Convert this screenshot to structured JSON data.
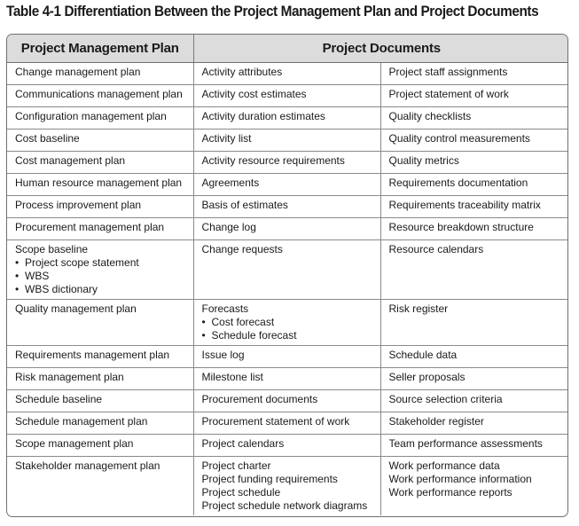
{
  "title": "Table 4-1 Differentiation Between the Project Management Plan and Project Documents",
  "headers": {
    "plan": "Project Management Plan",
    "documents": "Project Documents"
  },
  "rows": [
    {
      "plan": [
        "Change management plan"
      ],
      "doc1": [
        "Activity attributes"
      ],
      "doc2": [
        "Project staff assignments"
      ]
    },
    {
      "plan": [
        "Communications management plan"
      ],
      "doc1": [
        "Activity cost estimates"
      ],
      "doc2": [
        "Project statement of work"
      ]
    },
    {
      "plan": [
        "Configuration management plan"
      ],
      "doc1": [
        "Activity duration estimates"
      ],
      "doc2": [
        "Quality checklists"
      ]
    },
    {
      "plan": [
        "Cost baseline"
      ],
      "doc1": [
        "Activity list"
      ],
      "doc2": [
        "Quality control measurements"
      ]
    },
    {
      "plan": [
        "Cost management plan"
      ],
      "doc1": [
        "Activity resource requirements"
      ],
      "doc2": [
        "Quality metrics"
      ]
    },
    {
      "plan": [
        "Human resource management plan"
      ],
      "doc1": [
        "Agreements"
      ],
      "doc2": [
        "Requirements documentation"
      ]
    },
    {
      "plan": [
        "Process improvement plan"
      ],
      "doc1": [
        "Basis of estimates"
      ],
      "doc2": [
        "Requirements traceability matrix"
      ]
    },
    {
      "plan": [
        "Procurement management plan"
      ],
      "doc1": [
        "Change log"
      ],
      "doc2": [
        "Resource breakdown structure"
      ]
    },
    {
      "plan": [
        "Scope baseline"
      ],
      "plan_bullets": [
        "Project scope statement",
        "WBS",
        "WBS dictionary"
      ],
      "doc1": [
        "Change requests"
      ],
      "doc2": [
        "Resource calendars"
      ]
    },
    {
      "plan": [
        "Quality management plan"
      ],
      "doc1": [
        "Forecasts"
      ],
      "doc1_bullets": [
        "Cost forecast",
        "Schedule forecast"
      ],
      "doc2": [
        "Risk register"
      ]
    },
    {
      "plan": [
        "Requirements management plan"
      ],
      "doc1": [
        "Issue log"
      ],
      "doc2": [
        "Schedule data"
      ]
    },
    {
      "plan": [
        "Risk management plan"
      ],
      "doc1": [
        "Milestone list"
      ],
      "doc2": [
        "Seller proposals"
      ]
    },
    {
      "plan": [
        "Schedule baseline"
      ],
      "doc1": [
        "Procurement documents"
      ],
      "doc2": [
        "Source selection criteria"
      ]
    },
    {
      "plan": [
        "Schedule management plan"
      ],
      "doc1": [
        "Procurement statement of work"
      ],
      "doc2": [
        "Stakeholder register"
      ]
    },
    {
      "plan": [
        "Scope management plan"
      ],
      "doc1": [
        "Project calendars"
      ],
      "doc2": [
        "Team performance assessments"
      ]
    },
    {
      "plan": [
        "Stakeholder management plan"
      ],
      "doc1": [
        "Project charter",
        "Project funding requirements",
        "Project schedule",
        "Project schedule network diagrams"
      ],
      "doc2": [
        "Work performance data",
        "Work performance information",
        "Work performance reports"
      ]
    }
  ]
}
